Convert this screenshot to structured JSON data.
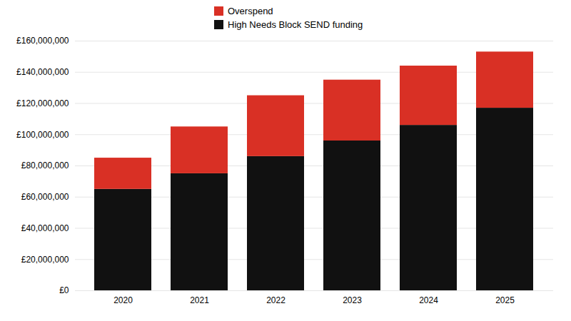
{
  "chart_data": {
    "type": "bar",
    "stacked": true,
    "categories": [
      "2020",
      "2021",
      "2022",
      "2023",
      "2024",
      "2025"
    ],
    "series": [
      {
        "name": "High Needs Block SEND funding",
        "color": "#111111",
        "values": [
          65000000,
          75000000,
          86000000,
          96000000,
          106000000,
          117000000
        ]
      },
      {
        "name": "Overspend",
        "color": "#d93025",
        "values": [
          20000000,
          30000000,
          39000000,
          39000000,
          38000000,
          36000000
        ]
      }
    ],
    "ylim": [
      0,
      160000000
    ],
    "yticks": [
      {
        "value": 0,
        "label": "£0"
      },
      {
        "value": 20000000,
        "label": "£20,000,000"
      },
      {
        "value": 40000000,
        "label": "£40,000,000"
      },
      {
        "value": 60000000,
        "label": "£60,000,000"
      },
      {
        "value": 80000000,
        "label": "£80,000,000"
      },
      {
        "value": 100000000,
        "label": "£100,000,000"
      },
      {
        "value": 120000000,
        "label": "£120,000,000"
      },
      {
        "value": 140000000,
        "label": "£140,000,000"
      },
      {
        "value": 160000000,
        "label": "£160,000,000"
      }
    ],
    "grid": true,
    "legend": "top"
  }
}
